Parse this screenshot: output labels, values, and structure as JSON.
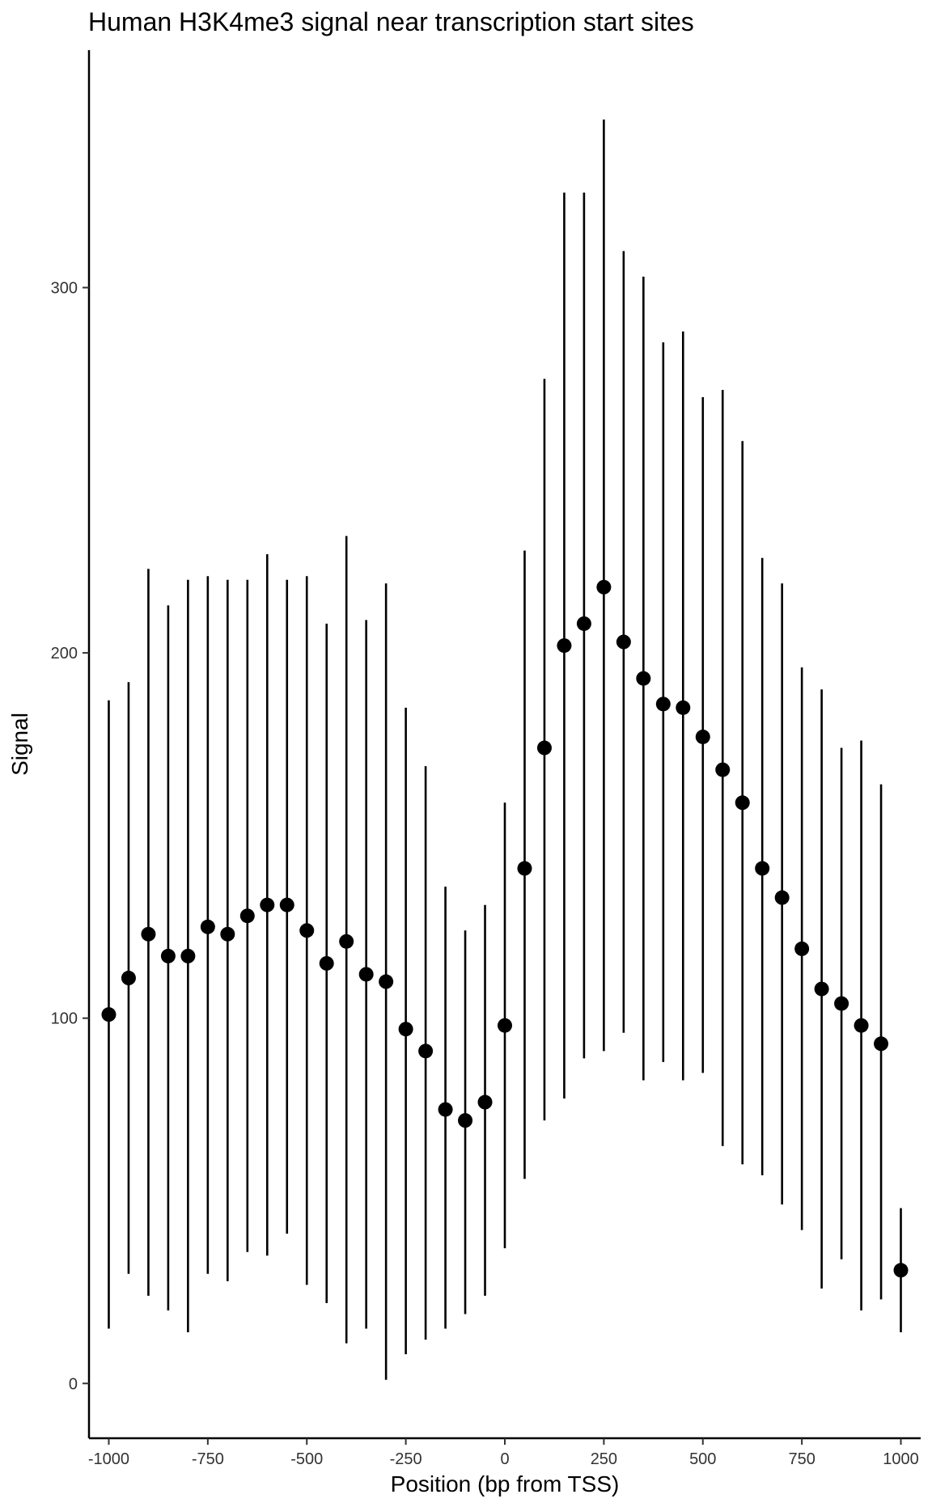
{
  "chart_data": {
    "type": "scatter",
    "title": "Human H3K4me3 signal near transcription start sites",
    "xlabel": "Position (bp from TSS)",
    "ylabel": "Signal",
    "xlim": [
      -1050,
      1050
    ],
    "ylim": [
      -15,
      365
    ],
    "x_ticks": [
      -1000,
      -750,
      -500,
      -250,
      0,
      250,
      500,
      750,
      1000
    ],
    "x_tick_labels": [
      "-1000",
      "-750",
      "-500",
      "-250",
      "0",
      "250",
      "500",
      "750",
      "1000"
    ],
    "y_ticks": [
      0,
      100,
      200,
      300
    ],
    "y_tick_labels": [
      "0",
      "100",
      "200",
      "300"
    ],
    "grid": false,
    "legend": "none",
    "error_bars": true,
    "points": [
      {
        "x": -1000,
        "y": 101,
        "low": 15,
        "high": 187
      },
      {
        "x": -950,
        "y": 111,
        "low": 30,
        "high": 192
      },
      {
        "x": -900,
        "y": 123,
        "low": 24,
        "high": 223
      },
      {
        "x": -850,
        "y": 117,
        "low": 20,
        "high": 213
      },
      {
        "x": -800,
        "y": 117,
        "low": 14,
        "high": 220
      },
      {
        "x": -750,
        "y": 125,
        "low": 30,
        "high": 221
      },
      {
        "x": -700,
        "y": 123,
        "low": 28,
        "high": 220
      },
      {
        "x": -650,
        "y": 128,
        "low": 36,
        "high": 220
      },
      {
        "x": -600,
        "y": 131,
        "low": 35,
        "high": 227
      },
      {
        "x": -550,
        "y": 131,
        "low": 41,
        "high": 220
      },
      {
        "x": -500,
        "y": 124,
        "low": 27,
        "high": 221
      },
      {
        "x": -450,
        "y": 115,
        "low": 22,
        "high": 208
      },
      {
        "x": -400,
        "y": 121,
        "low": 11,
        "high": 232
      },
      {
        "x": -350,
        "y": 112,
        "low": 15,
        "high": 209
      },
      {
        "x": -300,
        "y": 110,
        "low": 1,
        "high": 219
      },
      {
        "x": -250,
        "y": 97,
        "low": 8,
        "high": 185
      },
      {
        "x": -200,
        "y": 91,
        "low": 12,
        "high": 169
      },
      {
        "x": -150,
        "y": 75,
        "low": 15,
        "high": 136
      },
      {
        "x": -100,
        "y": 72,
        "low": 19,
        "high": 124
      },
      {
        "x": -50,
        "y": 77,
        "low": 24,
        "high": 131
      },
      {
        "x": 0,
        "y": 98,
        "low": 37,
        "high": 159
      },
      {
        "x": 50,
        "y": 141,
        "low": 56,
        "high": 228
      },
      {
        "x": 100,
        "y": 174,
        "low": 72,
        "high": 275
      },
      {
        "x": 150,
        "y": 202,
        "low": 78,
        "high": 326
      },
      {
        "x": 200,
        "y": 208,
        "low": 89,
        "high": 326
      },
      {
        "x": 250,
        "y": 218,
        "low": 91,
        "high": 346
      },
      {
        "x": 300,
        "y": 203,
        "low": 96,
        "high": 310
      },
      {
        "x": 350,
        "y": 193,
        "low": 83,
        "high": 303
      },
      {
        "x": 400,
        "y": 186,
        "low": 88,
        "high": 285
      },
      {
        "x": 450,
        "y": 185,
        "low": 83,
        "high": 288
      },
      {
        "x": 500,
        "y": 177,
        "low": 85,
        "high": 270
      },
      {
        "x": 550,
        "y": 168,
        "low": 65,
        "high": 272
      },
      {
        "x": 600,
        "y": 159,
        "low": 60,
        "high": 258
      },
      {
        "x": 650,
        "y": 141,
        "low": 57,
        "high": 226
      },
      {
        "x": 700,
        "y": 133,
        "low": 49,
        "high": 219
      },
      {
        "x": 750,
        "y": 119,
        "low": 42,
        "high": 196
      },
      {
        "x": 800,
        "y": 108,
        "low": 26,
        "high": 190
      },
      {
        "x": 850,
        "y": 104,
        "low": 34,
        "high": 174
      },
      {
        "x": 900,
        "y": 98,
        "low": 20,
        "high": 176
      },
      {
        "x": 950,
        "y": 93,
        "low": 23,
        "high": 164
      },
      {
        "x": 1000,
        "y": 31,
        "low": 14,
        "high": 48
      }
    ]
  }
}
